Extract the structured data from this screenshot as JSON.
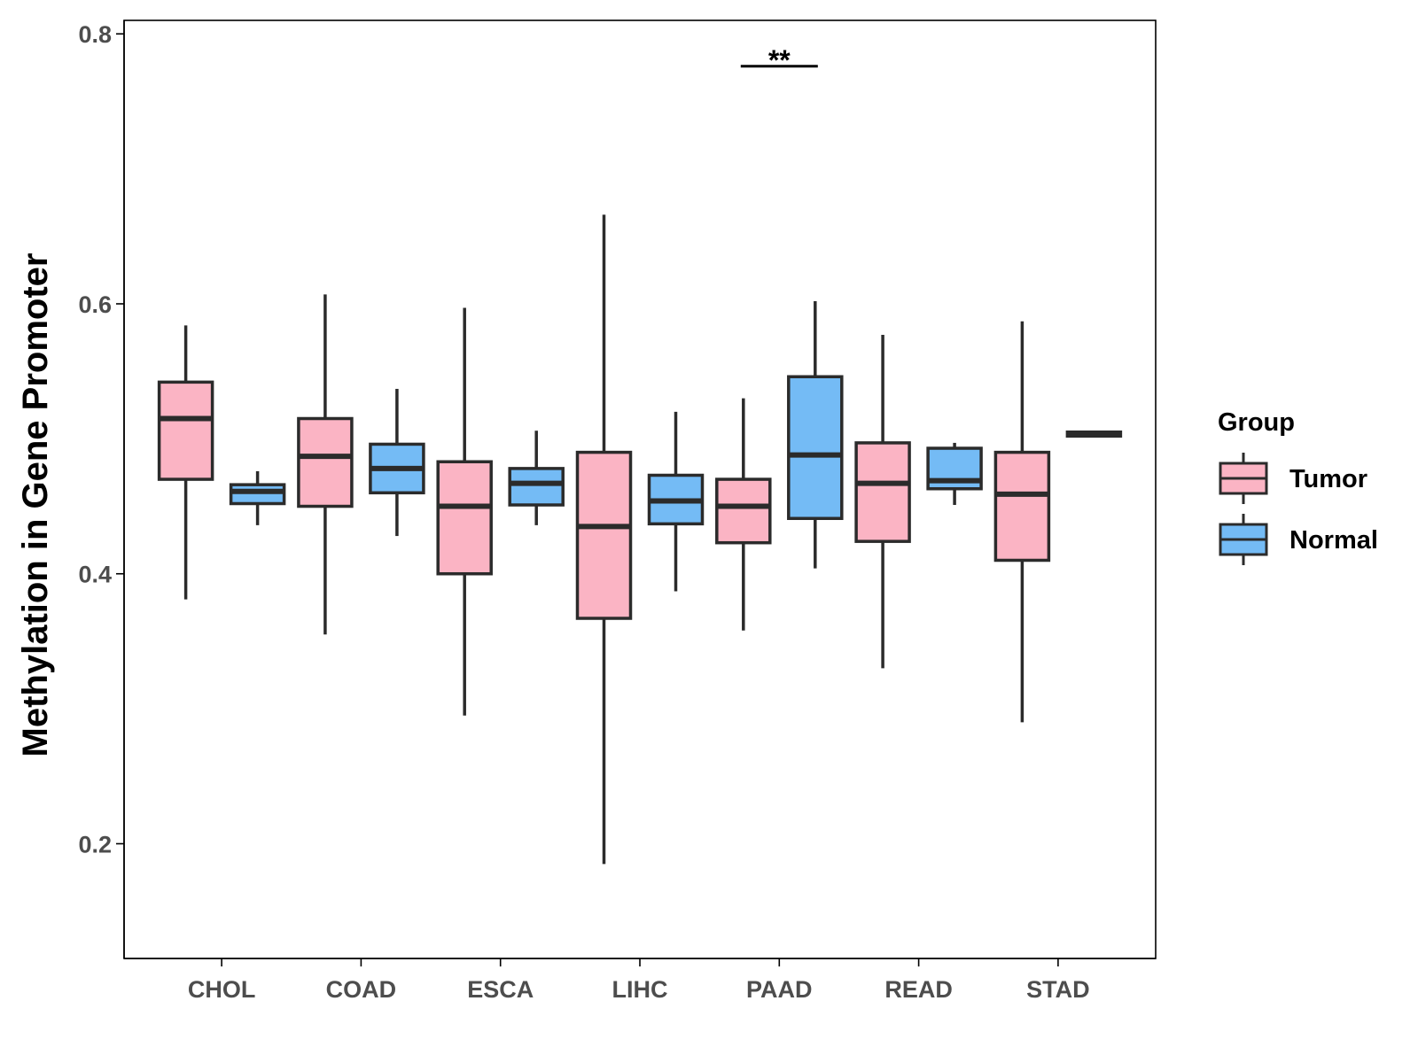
{
  "chart_data": {
    "type": "boxplot",
    "title": "",
    "xlabel": "",
    "ylabel": "Methylation in Gene Promoter",
    "ylim": [
      0.115,
      0.81
    ],
    "yticks": [
      0.2,
      0.4,
      0.6,
      0.8
    ],
    "ytick_labels": [
      "0.2",
      "0.4",
      "0.6",
      "0.8"
    ],
    "grid": false,
    "categories": [
      "CHOL",
      "COAD",
      "ESCA",
      "LIHC",
      "PAAD",
      "READ",
      "STAD"
    ],
    "legend": {
      "title": "Group",
      "position": "right",
      "entries": [
        {
          "name": "Tumor",
          "color": "#fbb4c4"
        },
        {
          "name": "Normal",
          "color": "#74bbf5"
        }
      ]
    },
    "series": [
      {
        "name": "Tumor",
        "color": "#fbb4c4",
        "boxes": [
          {
            "category": "CHOL",
            "min": 0.381,
            "q1": 0.47,
            "median": 0.515,
            "q3": 0.542,
            "max": 0.584
          },
          {
            "category": "COAD",
            "min": 0.355,
            "q1": 0.45,
            "median": 0.487,
            "q3": 0.515,
            "max": 0.607
          },
          {
            "category": "ESCA",
            "min": 0.295,
            "q1": 0.4,
            "median": 0.45,
            "q3": 0.483,
            "max": 0.597
          },
          {
            "category": "LIHC",
            "min": 0.185,
            "q1": 0.367,
            "median": 0.435,
            "q3": 0.49,
            "max": 0.666
          },
          {
            "category": "PAAD",
            "min": 0.358,
            "q1": 0.423,
            "median": 0.45,
            "q3": 0.47,
            "max": 0.53
          },
          {
            "category": "READ",
            "min": 0.33,
            "q1": 0.424,
            "median": 0.467,
            "q3": 0.497,
            "max": 0.577
          },
          {
            "category": "STAD",
            "min": 0.29,
            "q1": 0.41,
            "median": 0.459,
            "q3": 0.49,
            "max": 0.587
          }
        ]
      },
      {
        "name": "Normal",
        "color": "#74bbf5",
        "boxes": [
          {
            "category": "CHOL",
            "min": 0.436,
            "q1": 0.452,
            "median": 0.461,
            "q3": 0.466,
            "max": 0.476
          },
          {
            "category": "COAD",
            "min": 0.428,
            "q1": 0.46,
            "median": 0.478,
            "q3": 0.496,
            "max": 0.537
          },
          {
            "category": "ESCA",
            "min": 0.436,
            "q1": 0.451,
            "median": 0.467,
            "q3": 0.478,
            "max": 0.506
          },
          {
            "category": "LIHC",
            "min": 0.387,
            "q1": 0.437,
            "median": 0.454,
            "q3": 0.473,
            "max": 0.52
          },
          {
            "category": "PAAD",
            "min": 0.404,
            "q1": 0.441,
            "median": 0.488,
            "q3": 0.546,
            "max": 0.602
          },
          {
            "category": "READ",
            "min": 0.451,
            "q1": 0.463,
            "median": 0.469,
            "q3": 0.493,
            "max": 0.497
          },
          {
            "category": "STAD",
            "min": 0.502,
            "q1": 0.502,
            "median": 0.503,
            "q3": 0.505,
            "max": 0.505
          }
        ]
      }
    ],
    "annotations": [
      {
        "category": "PAAD",
        "text": "**",
        "y": 0.776
      }
    ]
  }
}
